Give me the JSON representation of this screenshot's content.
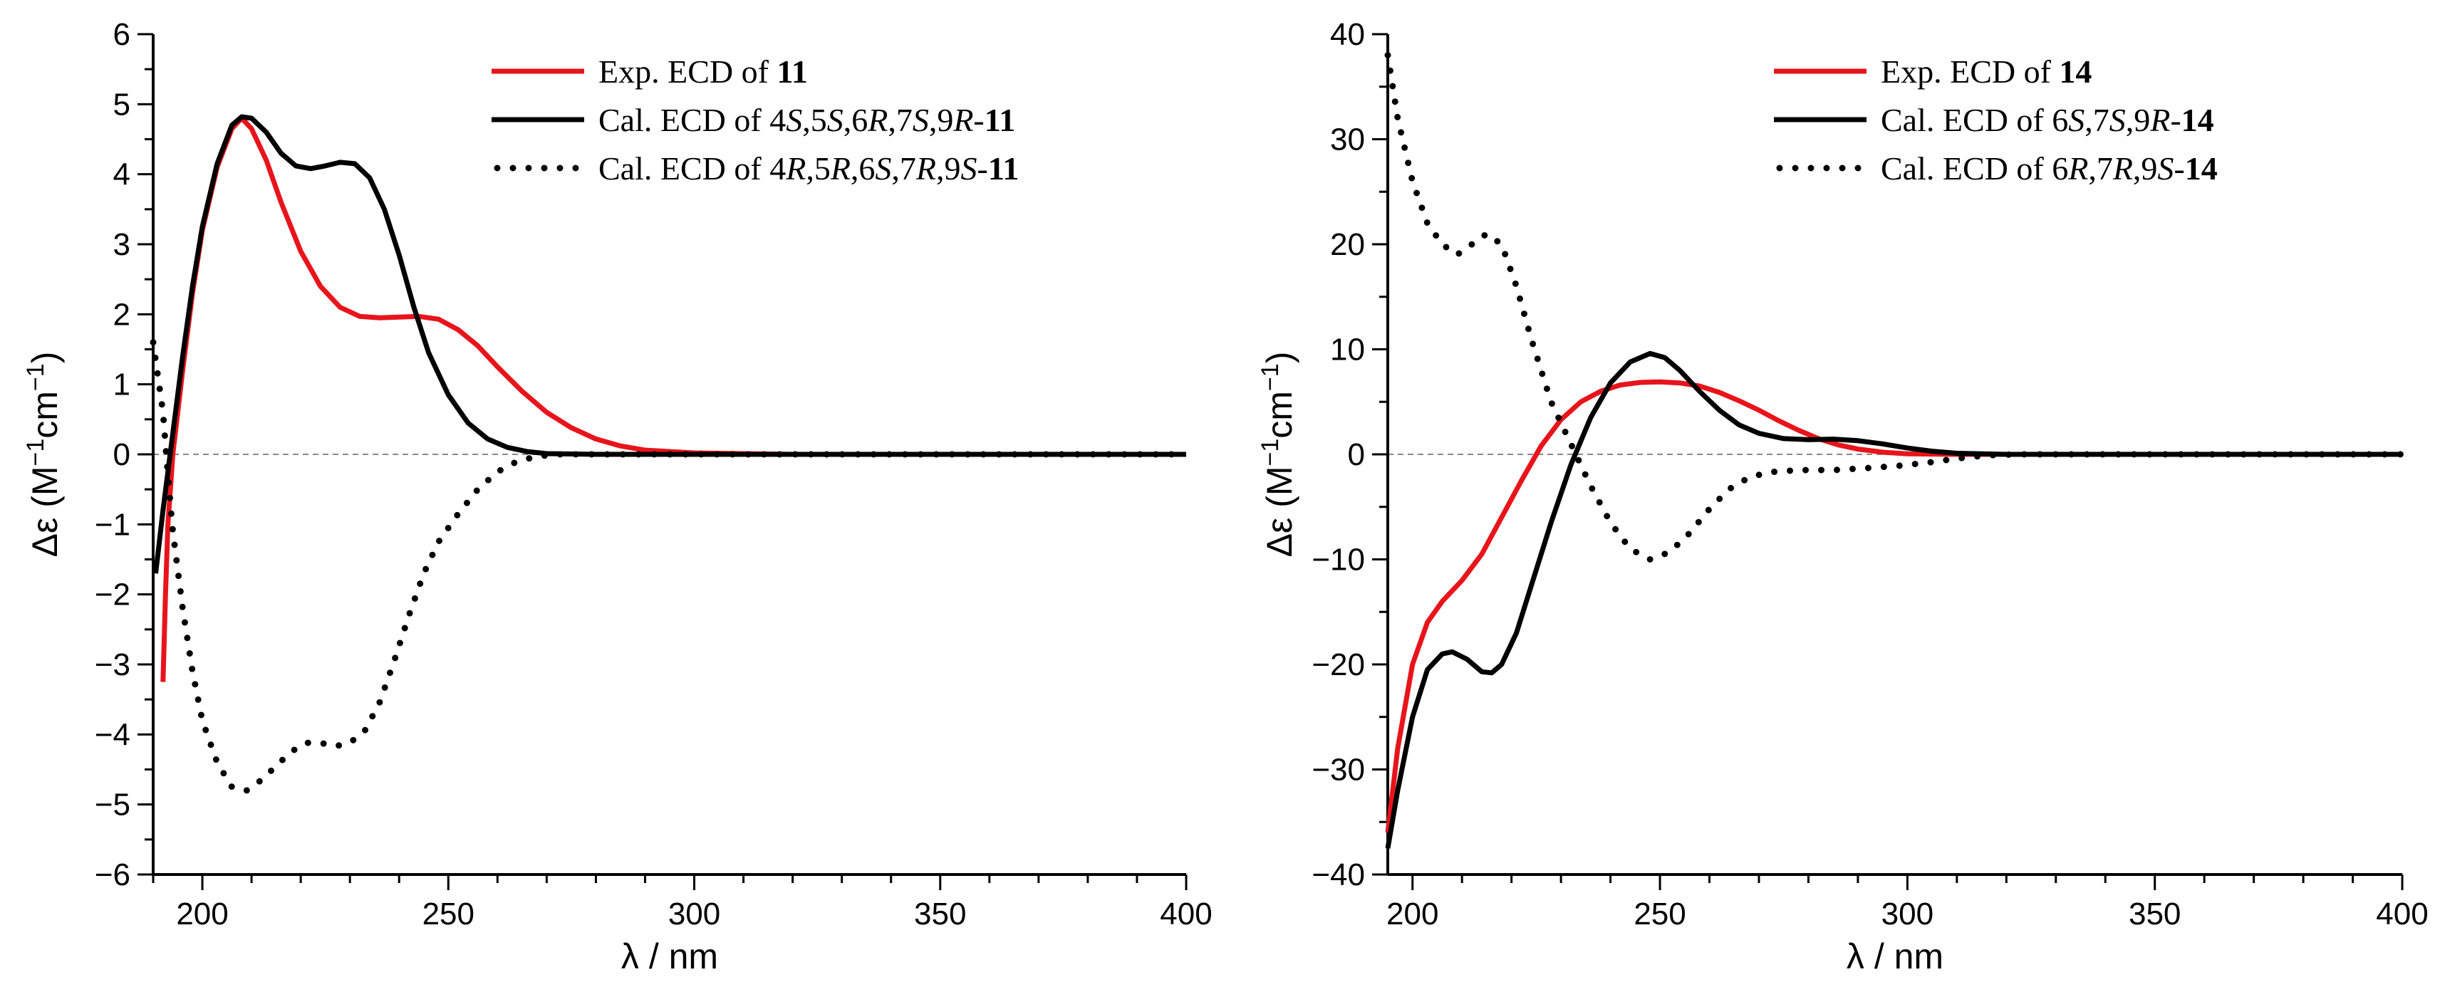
{
  "chart_data": [
    {
      "type": "line",
      "xlabel": "λ / nm",
      "ylabel": "Δε (M−1cm−1)",
      "xlim": [
        190,
        400
      ],
      "ylim": [
        -6,
        6
      ],
      "xticks": [
        200,
        250,
        300,
        350,
        400
      ],
      "yticks": [
        -6,
        -5,
        -4,
        -3,
        -2,
        -1,
        0,
        1,
        2,
        3,
        4,
        5,
        6
      ],
      "xtick_labels": [
        "200",
        "250",
        "300",
        "350",
        "400"
      ],
      "ytick_labels": [
        "−6",
        "−5",
        "−4",
        "−3",
        "−2",
        "−1",
        "0",
        "1",
        "2",
        "3",
        "4",
        "5",
        "6"
      ],
      "zero_line": true,
      "grid": false,
      "legend_position": "top-right",
      "legend": [
        {
          "prefix": "Exp. ECD of ",
          "config": "",
          "compound": "11"
        },
        {
          "prefix": "Cal. ECD of ",
          "config": "4S,5S,6R,7S,9R-",
          "compound": "11"
        },
        {
          "prefix": "Cal. ECD of ",
          "config": "4R,5R,6S,7R,9S-",
          "compound": "11"
        }
      ],
      "series": [
        {
          "color": "#e8141b",
          "dash": "solid",
          "points": [
            [
              192,
              -3.25
            ],
            [
              192.5,
              -2.0
            ],
            [
              193,
              -1.0
            ],
            [
              194,
              0.0
            ],
            [
              196,
              1.2
            ],
            [
              198,
              2.3
            ],
            [
              200,
              3.2
            ],
            [
              203,
              4.1
            ],
            [
              206,
              4.65
            ],
            [
              208,
              4.8
            ],
            [
              210,
              4.65
            ],
            [
              213,
              4.2
            ],
            [
              216,
              3.6
            ],
            [
              220,
              2.9
            ],
            [
              224,
              2.4
            ],
            [
              228,
              2.1
            ],
            [
              232,
              1.97
            ],
            [
              236,
              1.95
            ],
            [
              240,
              1.96
            ],
            [
              244,
              1.97
            ],
            [
              248,
              1.93
            ],
            [
              252,
              1.78
            ],
            [
              256,
              1.55
            ],
            [
              260,
              1.25
            ],
            [
              265,
              0.9
            ],
            [
              270,
              0.6
            ],
            [
              275,
              0.38
            ],
            [
              280,
              0.22
            ],
            [
              285,
              0.12
            ],
            [
              290,
              0.06
            ],
            [
              300,
              0.02
            ],
            [
              320,
              0.0
            ],
            [
              400,
              0.0
            ]
          ]
        },
        {
          "color": "#000000",
          "dash": "solid",
          "points": [
            [
              190.5,
              -1.7
            ],
            [
              192,
              -0.8
            ],
            [
              194,
              0.3
            ],
            [
              196,
              1.4
            ],
            [
              198,
              2.4
            ],
            [
              200,
              3.25
            ],
            [
              203,
              4.15
            ],
            [
              206,
              4.7
            ],
            [
              208,
              4.82
            ],
            [
              210,
              4.8
            ],
            [
              213,
              4.6
            ],
            [
              216,
              4.3
            ],
            [
              219,
              4.12
            ],
            [
              222,
              4.08
            ],
            [
              225,
              4.12
            ],
            [
              228,
              4.17
            ],
            [
              231,
              4.15
            ],
            [
              234,
              3.95
            ],
            [
              237,
              3.5
            ],
            [
              240,
              2.85
            ],
            [
              243,
              2.1
            ],
            [
              246,
              1.45
            ],
            [
              250,
              0.85
            ],
            [
              254,
              0.45
            ],
            [
              258,
              0.22
            ],
            [
              262,
              0.1
            ],
            [
              266,
              0.04
            ],
            [
              270,
              0.01
            ],
            [
              280,
              0.0
            ],
            [
              400,
              0.0
            ]
          ]
        },
        {
          "color": "#000000",
          "dash": "dotted",
          "points": [
            [
              190,
              1.6
            ],
            [
              191,
              1.1
            ],
            [
              192,
              0.6
            ],
            [
              193,
              -0.3
            ],
            [
              194,
              -1.1
            ],
            [
              196,
              -2.2
            ],
            [
              198,
              -3.1
            ],
            [
              200,
              -3.8
            ],
            [
              203,
              -4.4
            ],
            [
              206,
              -4.75
            ],
            [
              209,
              -4.8
            ],
            [
              212,
              -4.65
            ],
            [
              215,
              -4.45
            ],
            [
              218,
              -4.25
            ],
            [
              221,
              -4.12
            ],
            [
              224,
              -4.12
            ],
            [
              227,
              -4.17
            ],
            [
              230,
              -4.12
            ],
            [
              233,
              -3.95
            ],
            [
              236,
              -3.55
            ],
            [
              239,
              -2.95
            ],
            [
              242,
              -2.3
            ],
            [
              245,
              -1.7
            ],
            [
              248,
              -1.25
            ],
            [
              252,
              -0.85
            ],
            [
              256,
              -0.5
            ],
            [
              260,
              -0.25
            ],
            [
              264,
              -0.1
            ],
            [
              268,
              -0.03
            ],
            [
              272,
              0.0
            ],
            [
              400,
              0.0
            ]
          ]
        }
      ]
    },
    {
      "type": "line",
      "xlabel": "λ / nm",
      "ylabel": "Δε (M−1cm−1)",
      "xlim": [
        195,
        400
      ],
      "ylim": [
        -40,
        40
      ],
      "xticks": [
        200,
        250,
        300,
        350,
        400
      ],
      "yticks": [
        -40,
        -30,
        -20,
        -10,
        0,
        10,
        20,
        30,
        40
      ],
      "xtick_labels": [
        "200",
        "250",
        "300",
        "350",
        "400"
      ],
      "ytick_labels": [
        "−40",
        "−30",
        "−20",
        "−10",
        "0",
        "10",
        "20",
        "30",
        "40"
      ],
      "zero_line": true,
      "grid": false,
      "legend_position": "top-right",
      "legend": [
        {
          "prefix": "Exp. ECD of ",
          "config": "",
          "compound": "14"
        },
        {
          "prefix": "Cal. ECD of ",
          "config": "6S,7S,9R-",
          "compound": "14"
        },
        {
          "prefix": "Cal. ECD of ",
          "config": "6R,7R,9S-",
          "compound": "14"
        }
      ],
      "series": [
        {
          "color": "#e8141b",
          "dash": "solid",
          "points": [
            [
              195,
              -36
            ],
            [
              197,
              -28
            ],
            [
              200,
              -20
            ],
            [
              203,
              -16
            ],
            [
              206,
              -14
            ],
            [
              210,
              -12
            ],
            [
              214,
              -9.5
            ],
            [
              218,
              -6
            ],
            [
              222,
              -2.5
            ],
            [
              226,
              0.8
            ],
            [
              230,
              3.3
            ],
            [
              234,
              5.0
            ],
            [
              238,
              6.0
            ],
            [
              242,
              6.6
            ],
            [
              246,
              6.85
            ],
            [
              250,
              6.9
            ],
            [
              254,
              6.8
            ],
            [
              258,
              6.5
            ],
            [
              262,
              5.9
            ],
            [
              266,
              5.1
            ],
            [
              270,
              4.2
            ],
            [
              274,
              3.2
            ],
            [
              278,
              2.3
            ],
            [
              282,
              1.5
            ],
            [
              286,
              0.9
            ],
            [
              290,
              0.5
            ],
            [
              295,
              0.2
            ],
            [
              300,
              0.05
            ],
            [
              310,
              0.0
            ],
            [
              400,
              0.0
            ]
          ]
        },
        {
          "color": "#000000",
          "dash": "solid",
          "points": [
            [
              195,
              -37.5
            ],
            [
              197,
              -32
            ],
            [
              200,
              -25
            ],
            [
              203,
              -20.5
            ],
            [
              206,
              -19
            ],
            [
              208,
              -18.8
            ],
            [
              211,
              -19.5
            ],
            [
              214,
              -20.7
            ],
            [
              216,
              -20.8
            ],
            [
              218,
              -20
            ],
            [
              221,
              -17
            ],
            [
              224,
              -12.5
            ],
            [
              228,
              -6.5
            ],
            [
              232,
              -1
            ],
            [
              236,
              3.5
            ],
            [
              240,
              6.8
            ],
            [
              244,
              8.8
            ],
            [
              248,
              9.6
            ],
            [
              251,
              9.2
            ],
            [
              254,
              8.0
            ],
            [
              258,
              6.0
            ],
            [
              262,
              4.2
            ],
            [
              266,
              2.8
            ],
            [
              270,
              2.0
            ],
            [
              275,
              1.5
            ],
            [
              280,
              1.4
            ],
            [
              285,
              1.45
            ],
            [
              290,
              1.3
            ],
            [
              295,
              1.0
            ],
            [
              300,
              0.6
            ],
            [
              305,
              0.3
            ],
            [
              310,
              0.1
            ],
            [
              320,
              0.0
            ],
            [
              400,
              0.0
            ]
          ]
        },
        {
          "color": "#000000",
          "dash": "dotted",
          "points": [
            [
              195,
              38
            ],
            [
              197,
              32
            ],
            [
              200,
              26
            ],
            [
              203,
              22
            ],
            [
              206,
              20
            ],
            [
              209,
              19
            ],
            [
              212,
              20
            ],
            [
              215,
              21
            ],
            [
              218,
              20
            ],
            [
              221,
              16
            ],
            [
              224,
              11
            ],
            [
              228,
              5
            ],
            [
              232,
              1
            ],
            [
              236,
              -3
            ],
            [
              240,
              -6.5
            ],
            [
              244,
              -9
            ],
            [
              248,
              -10
            ],
            [
              252,
              -9.3
            ],
            [
              256,
              -7.5
            ],
            [
              260,
              -5.2
            ],
            [
              264,
              -3.3
            ],
            [
              268,
              -2.2
            ],
            [
              272,
              -1.7
            ],
            [
              278,
              -1.5
            ],
            [
              285,
              -1.5
            ],
            [
              292,
              -1.3
            ],
            [
              298,
              -1.1
            ],
            [
              304,
              -0.8
            ],
            [
              310,
              -0.4
            ],
            [
              316,
              -0.1
            ],
            [
              322,
              0.0
            ],
            [
              400,
              0.0
            ]
          ]
        }
      ]
    }
  ]
}
